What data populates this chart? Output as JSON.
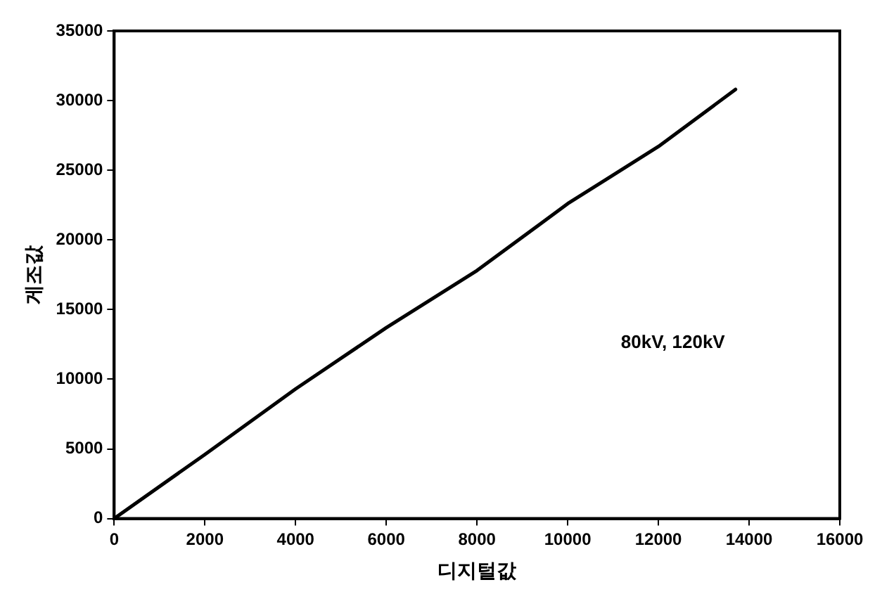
{
  "chart_data": {
    "type": "line",
    "xlabel": "디지털값",
    "ylabel": "게조값",
    "annotations": [
      "80kV, 120kV"
    ],
    "x": [
      0,
      2000,
      4000,
      6000,
      8000,
      10000,
      12000,
      13700
    ],
    "series": [
      {
        "color": "#000000",
        "values": [
          0,
          4600,
          9300,
          13700,
          17800,
          22600,
          26700,
          30800
        ]
      }
    ],
    "xlim": [
      0,
      16000
    ],
    "xticks": [
      0,
      2000,
      4000,
      6000,
      8000,
      10000,
      12000,
      14000,
      16000
    ],
    "ylim": [
      0,
      35000
    ],
    "yticks": [
      0,
      5000,
      10000,
      15000,
      20000,
      25000,
      30000,
      35000
    ],
    "grid": false,
    "legend": false,
    "marker": "none",
    "line_style": "solid"
  }
}
